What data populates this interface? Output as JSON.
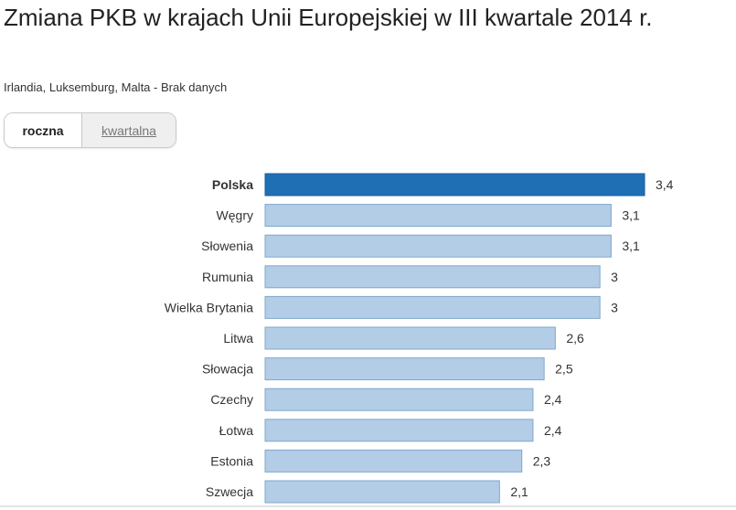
{
  "title": "Zmiana PKB w krajach Unii Europejskiej w III kwartale 2014 r.",
  "subtitle": "Irlandia, Luksemburg, Malta - Brak danych",
  "toggle": {
    "annual_label": "roczna",
    "quarterly_label": "kwartalna",
    "selected": "roczna"
  },
  "colors": {
    "highlight": "#1f6fb5",
    "bar": "#b3cde6",
    "bar_border": "#7fa7cc"
  },
  "chart_data": {
    "type": "bar",
    "orientation": "horizontal",
    "categories": [
      "Polska",
      "Węgry",
      "Słowenia",
      "Rumunia",
      "Wielka Brytania",
      "Litwa",
      "Słowacja",
      "Czechy",
      "Łotwa",
      "Estonia",
      "Szwecja"
    ],
    "values": [
      3.4,
      3.1,
      3.1,
      3,
      3,
      2.6,
      2.5,
      2.4,
      2.4,
      2.3,
      2.1
    ],
    "value_labels": [
      "3,4",
      "3,1",
      "3,1",
      "3",
      "3",
      "2,6",
      "2,5",
      "2,4",
      "2,4",
      "2,3",
      "2,1"
    ],
    "highlighted": "Polska",
    "xlim": [
      0,
      3.4
    ]
  }
}
